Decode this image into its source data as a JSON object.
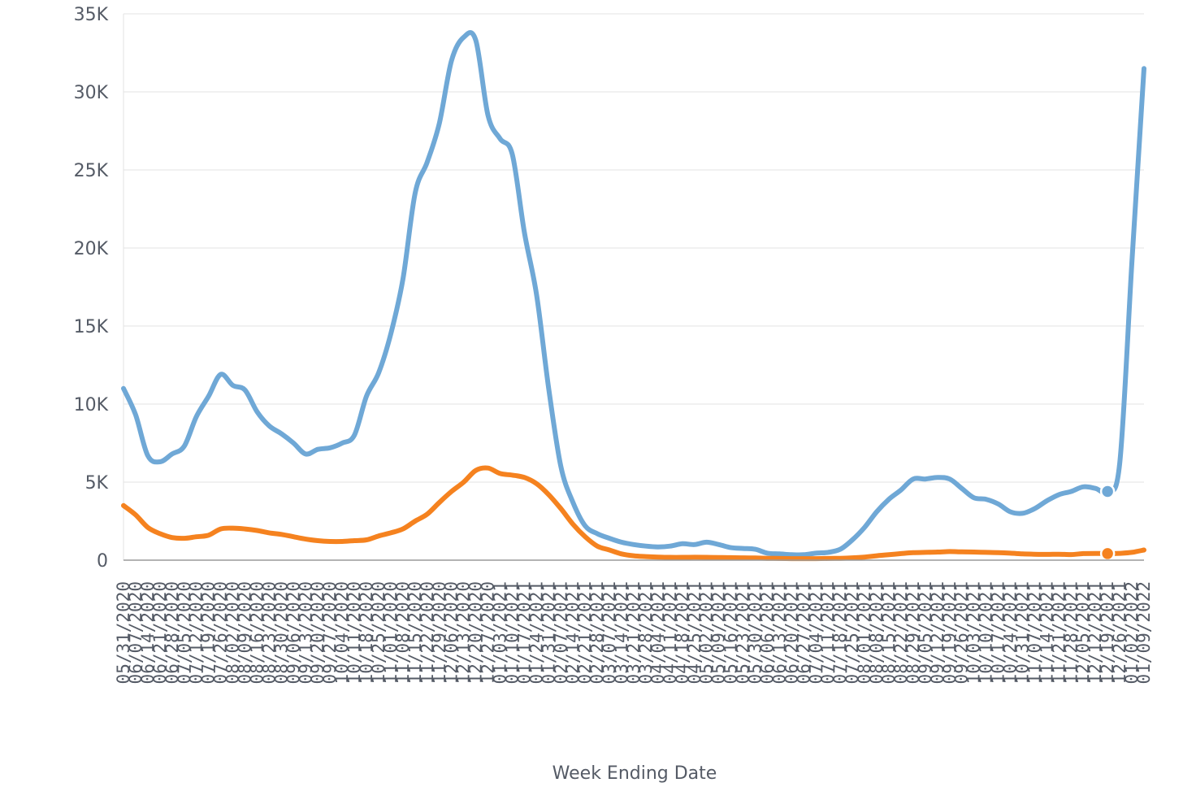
{
  "chart_data": {
    "type": "line",
    "xlabel": "Week Ending Date",
    "ylabel": "",
    "ylim": [
      0,
      35000
    ],
    "y_ticks": [
      0,
      5000,
      10000,
      15000,
      20000,
      25000,
      30000,
      35000
    ],
    "y_tick_labels": [
      "0",
      "5K",
      "10K",
      "15K",
      "20K",
      "25K",
      "30K",
      "35K"
    ],
    "grid": true,
    "legend": "none",
    "colors": [
      "#6fa8d6",
      "#f5821f"
    ],
    "x_tick_labels": [
      "05/31/2020",
      "06/07/2020",
      "06/14/2020",
      "06/21/2020",
      "06/28/2020",
      "07/05/2020",
      "07/12/2020",
      "07/19/2020",
      "07/26/2020",
      "08/02/2020",
      "08/09/2020",
      "08/16/2020",
      "08/23/2020",
      "08/30/2020",
      "09/06/2020",
      "09/13/2020",
      "09/20/2020",
      "09/27/2020",
      "10/04/2020",
      "10/11/2020",
      "10/18/2020",
      "10/25/2020",
      "11/01/2020",
      "11/08/2020",
      "11/15/2020",
      "11/22/2020",
      "11/29/2020",
      "12/06/2020",
      "12/13/2020",
      "12/20/2020",
      "12/27/2020",
      "01/03/2021",
      "01/10/2021",
      "01/17/2021",
      "01/24/2021",
      "01/31/2021",
      "02/07/2021",
      "02/14/2021",
      "02/21/2021",
      "02/28/2021",
      "03/07/2021",
      "03/14/2021",
      "03/21/2021",
      "03/28/2021",
      "04/04/2021",
      "04/11/2021",
      "04/18/2021",
      "04/25/2021",
      "05/02/2021",
      "05/09/2021",
      "05/16/2021",
      "05/23/2021",
      "05/30/2021",
      "06/06/2021",
      "06/13/2021",
      "06/20/2021",
      "06/27/2021",
      "07/04/2021",
      "07/11/2021",
      "07/18/2021",
      "07/25/2021",
      "08/01/2021",
      "08/08/2021",
      "08/15/2021",
      "08/22/2021",
      "08/29/2021",
      "09/05/2021",
      "09/12/2021",
      "09/19/2021",
      "09/26/2021",
      "10/03/2021",
      "10/10/2021",
      "10/17/2021",
      "10/24/2021",
      "10/31/2021",
      "11/07/2021",
      "11/14/2021",
      "11/21/2021",
      "11/28/2021",
      "12/05/2021",
      "12/12/2021",
      "12/19/2021",
      "12/26/2021",
      "01/02/2022",
      "01/09/2022"
    ],
    "series": [
      {
        "name": "",
        "values": [
          11000,
          9300,
          6700,
          6300,
          6800,
          7300,
          9200,
          10500,
          11900,
          11200,
          10900,
          9500,
          8600,
          8100,
          7500,
          6800,
          7100,
          7200,
          7500,
          8000,
          10500,
          12000,
          14500,
          18000,
          23500,
          25500,
          28000,
          32000,
          33500,
          33300,
          28500,
          27000,
          26000,
          21000,
          17000,
          11000,
          6000,
          3700,
          2200,
          1700,
          1400,
          1150,
          1000,
          900,
          850,
          900,
          1050,
          1000,
          1150,
          1000,
          800,
          750,
          700,
          450,
          400,
          350,
          350,
          450,
          500,
          700,
          1300,
          2100,
          3100,
          3900,
          4500,
          5200,
          5200,
          5300,
          5200,
          4600,
          4000,
          3900,
          3600,
          3100,
          3000,
          3300,
          3800,
          4200,
          4400,
          4700,
          4600,
          4400,
          6200,
          19000,
          31500
        ]
      },
      {
        "name": "",
        "values": [
          3500,
          2900,
          2100,
          1700,
          1450,
          1400,
          1500,
          1600,
          2000,
          2050,
          2000,
          1900,
          1750,
          1650,
          1500,
          1350,
          1250,
          1200,
          1200,
          1250,
          1300,
          1550,
          1750,
          2000,
          2500,
          2950,
          3700,
          4400,
          5000,
          5750,
          5900,
          5550,
          5450,
          5300,
          4900,
          4200,
          3300,
          2300,
          1500,
          900,
          650,
          400,
          280,
          230,
          200,
          180,
          180,
          190,
          180,
          170,
          160,
          150,
          140,
          120,
          110,
          100,
          100,
          100,
          110,
          120,
          150,
          200,
          280,
          350,
          420,
          480,
          500,
          520,
          550,
          530,
          520,
          500,
          480,
          450,
          400,
          380,
          370,
          380,
          360,
          420,
          430,
          420,
          440,
          500,
          650
        ]
      }
    ],
    "markers": [
      {
        "series": 0,
        "index": 81
      },
      {
        "series": 1,
        "index": 81
      }
    ]
  }
}
